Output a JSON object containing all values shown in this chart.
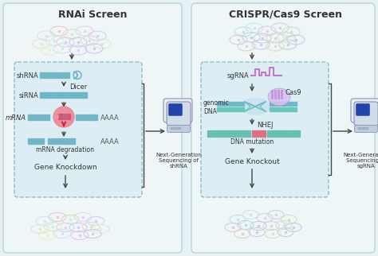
{
  "bg_color": "#e8f2f4",
  "left_panel_color": "#eef6f8",
  "right_panel_color": "#eef6f8",
  "panel_edge_color": "#b8d4dc",
  "dashed_box_color": "#90bcc8",
  "dashed_box_bg": "#dceef4",
  "title_left": "RNAi Screen",
  "title_right": "CRISPR/Cas9 Screen",
  "seq_label_left": "Next-Generation\nSequencing of\nshRNA",
  "seq_label_right": "Next-Generation\nSequencing of\nsgRNA",
  "arrow_color": "#444444",
  "text_color": "#333333",
  "dna_color": "#70b8c8",
  "dna_color2": "#68c0b0",
  "pink_color": "#e878a8",
  "purple_color": "#c078c8",
  "risc_color": "#f08090",
  "mutation_color": "#e07080",
  "seq_body_color": "#d0dce8",
  "seq_screen_color": "#2244aa",
  "seq_front_color": "#c0cce0",
  "ellipse_colors_left": [
    "#d0e8f0",
    "#f0c8c8",
    "#d0e8c0",
    "#e8d0f0",
    "#c8d8f0",
    "#f0e0c8",
    "#c8f0d8",
    "#f0c8e0",
    "#c8d0f0",
    "#f0d8c8",
    "#d8f0c8",
    "#e8f0c0",
    "#c8e8f0",
    "#e8c8f0",
    "#d0c8f0"
  ],
  "ellipse_colors_right": [
    "#c8dce8",
    "#c8e8e0",
    "#d8d0e8",
    "#c8d8e4",
    "#d4e0c8",
    "#e0c8d8",
    "#c0d4e8",
    "#d4c8e0",
    "#e4d0c8",
    "#c8e4d0",
    "#d0c8e4",
    "#e0d0c8",
    "#c8d0e4",
    "#d4e4c0",
    "#c4d4e0"
  ]
}
